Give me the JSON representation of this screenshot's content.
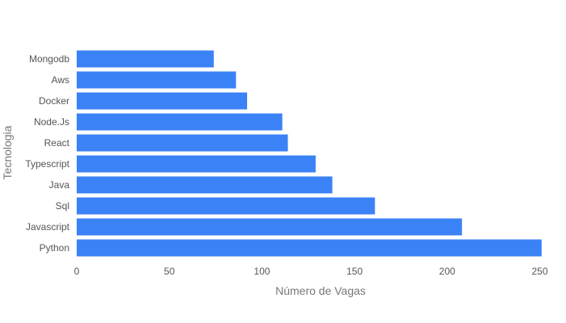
{
  "chart_data": {
    "type": "bar",
    "orientation": "horizontal",
    "title": "",
    "xlabel": "Número de Vagas",
    "ylabel": "Tecnologia",
    "categories": [
      "Mongodb",
      "Aws",
      "Docker",
      "Node.Js",
      "React",
      "Typescript",
      "Java",
      "Sql",
      "Javascript",
      "Python"
    ],
    "values": [
      74,
      86,
      92,
      111,
      114,
      129,
      138,
      161,
      208,
      251
    ],
    "xlim": [
      0,
      255
    ],
    "xticks": [
      "0",
      "50",
      "100",
      "150",
      "200",
      "250"
    ],
    "grid": false,
    "legend": "none",
    "bar_color": "#3b82f6"
  }
}
